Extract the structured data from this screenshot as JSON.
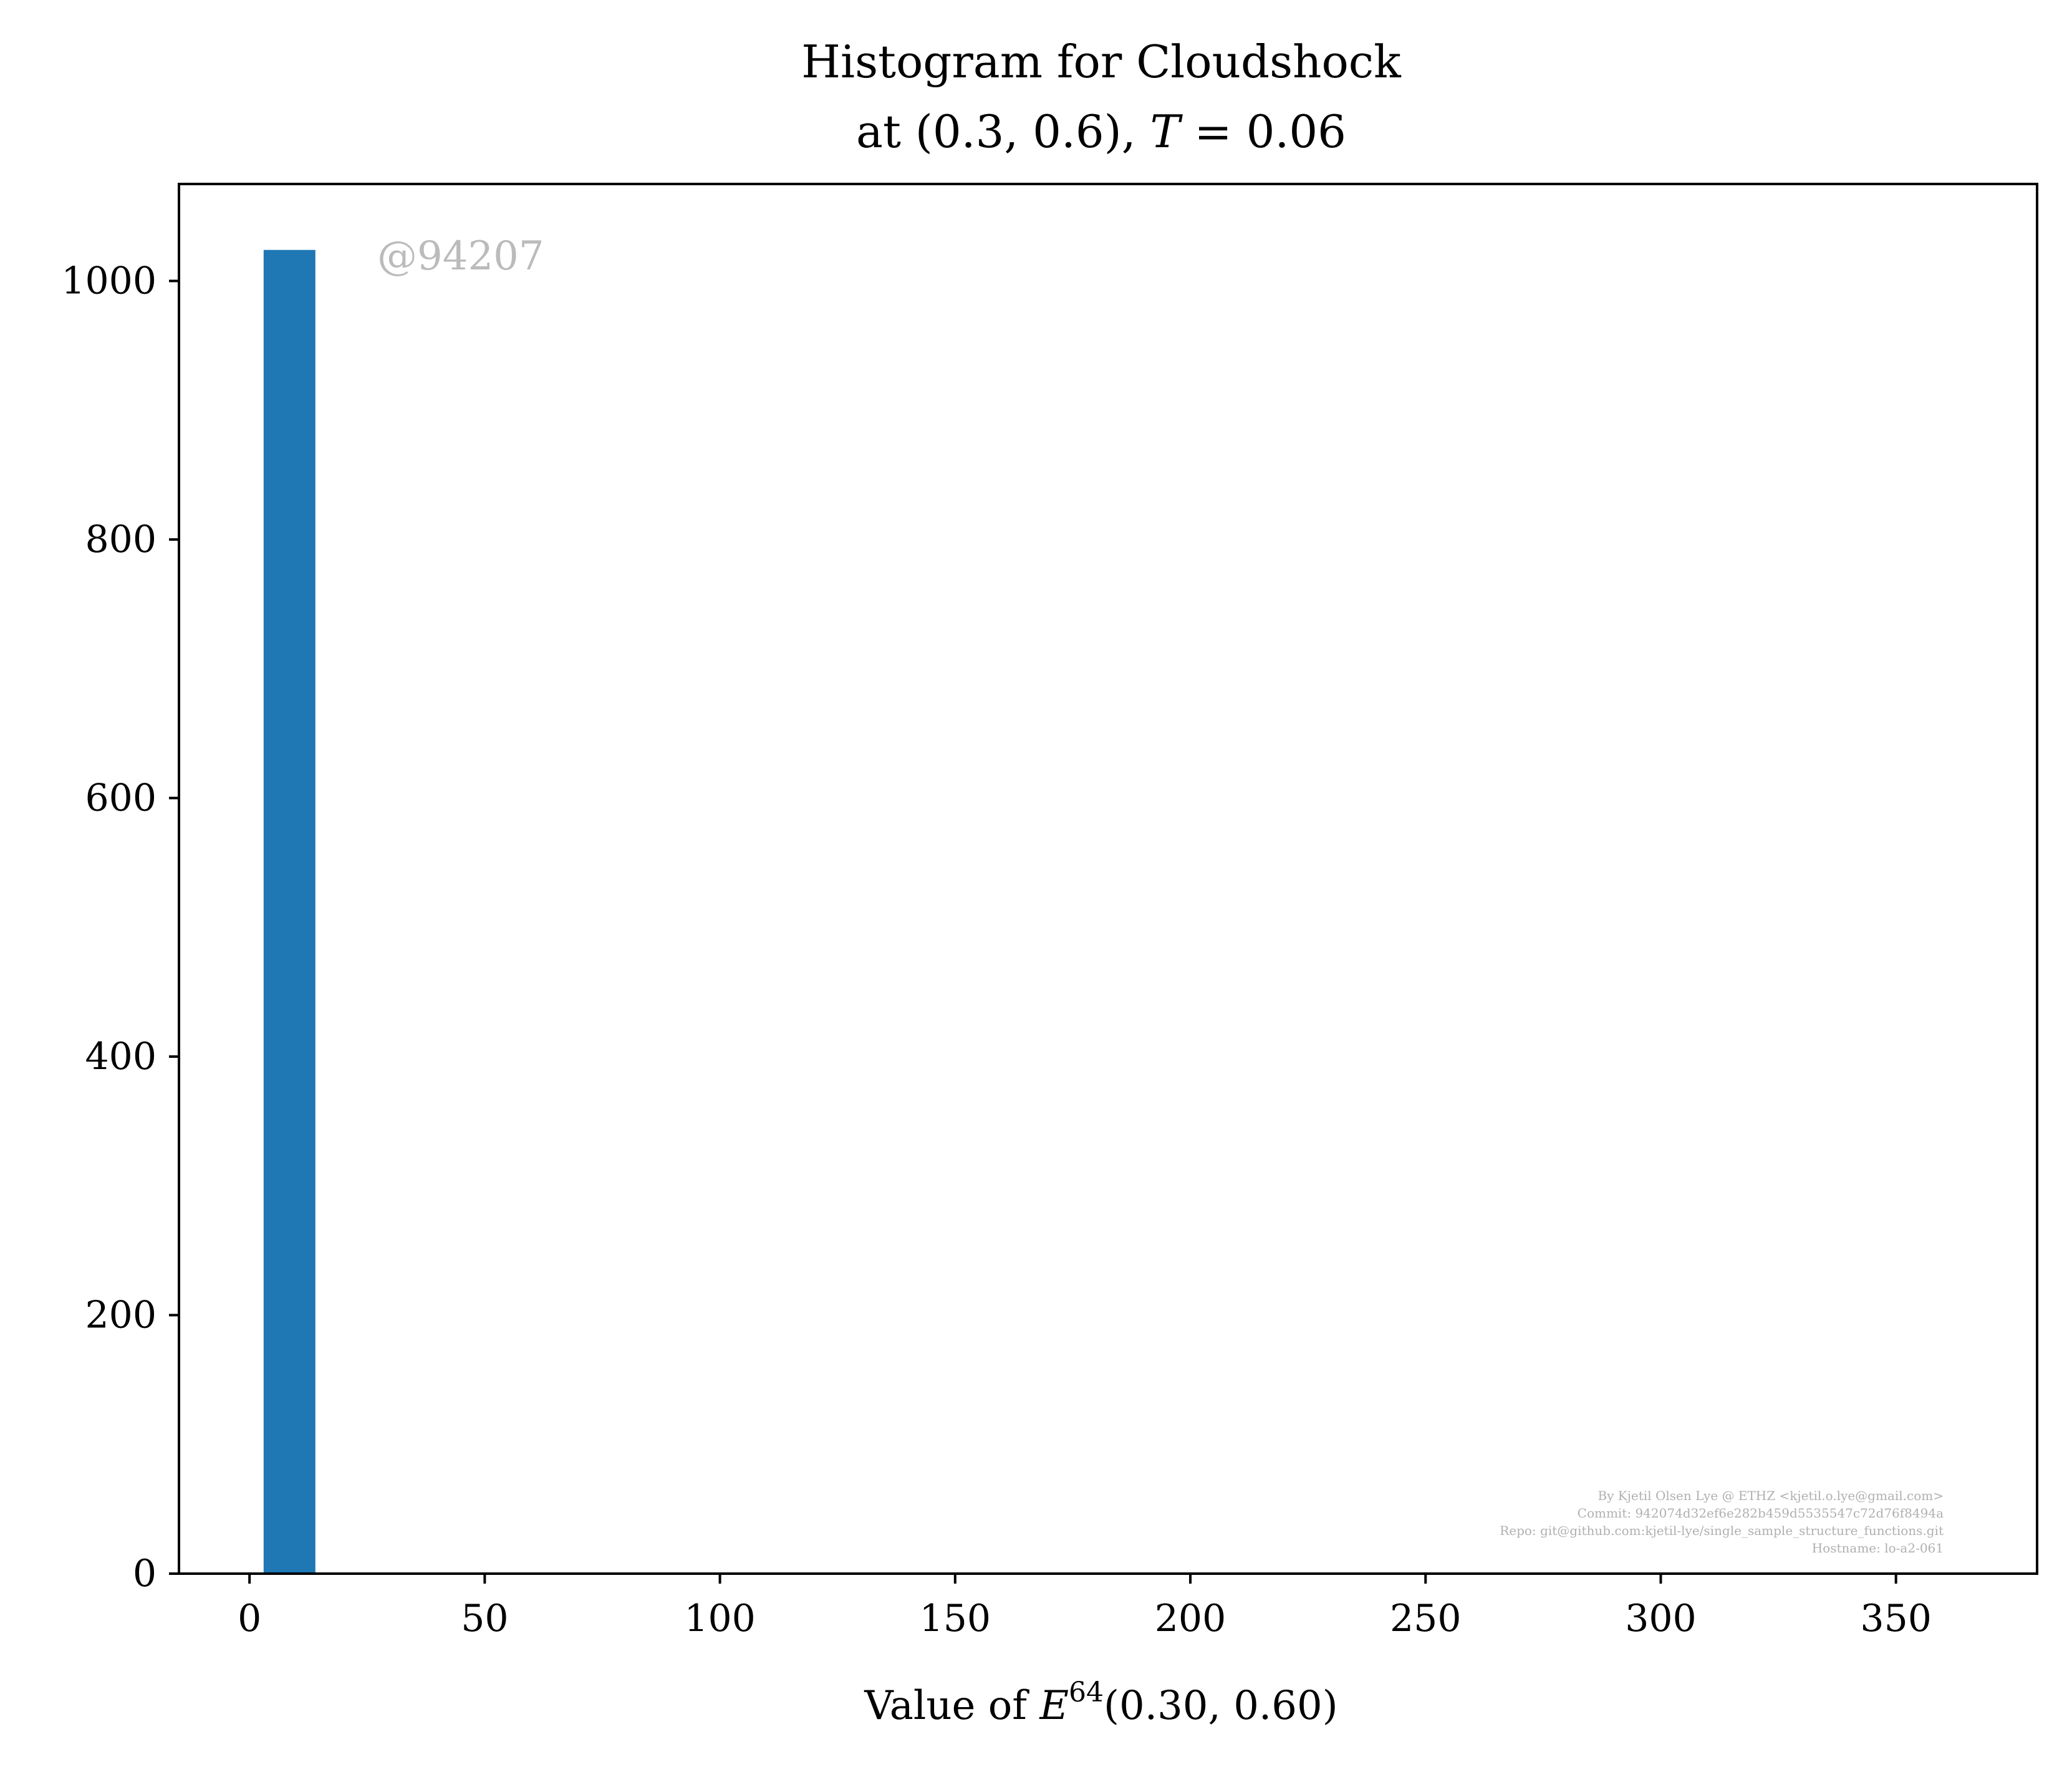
{
  "chart_data": {
    "type": "bar",
    "title_line1": "Histogram for Cloudshock",
    "title_line2_parts": [
      "at (0.3, 0.6), ",
      "T",
      " = 0.06"
    ],
    "xlabel_parts": [
      "Value of ",
      "E",
      "64",
      "(0.30, 0.60)"
    ],
    "ylabel": "",
    "watermark": "@94207",
    "credits": [
      "By Kjetil Olsen Lye @ ETHZ <kjetil.o.lye@gmail.com>",
      "Commit: 942074d32ef6e282b459d5535547c72d76f8494a",
      "Repo: git@github.com:kjetil-lye/single_sample_structure_functions.git",
      "Hostname: lo-a2-061"
    ],
    "xlim": [
      -15,
      380
    ],
    "ylim": [
      0,
      1075
    ],
    "xticks": [
      0,
      50,
      100,
      150,
      200,
      250,
      300,
      350
    ],
    "xtick_labels": [
      "0",
      "50",
      "100",
      "150",
      "200",
      "250",
      "300",
      "350"
    ],
    "yticks": [
      0,
      200,
      400,
      600,
      800,
      1000
    ],
    "ytick_labels": [
      "0",
      "200",
      "400",
      "600",
      "800",
      "1000"
    ],
    "bins": [
      {
        "x0": 3,
        "x1": 14,
        "count": 1024
      }
    ],
    "bar_color": "#1f77b4",
    "grid": false,
    "legend": "none"
  }
}
